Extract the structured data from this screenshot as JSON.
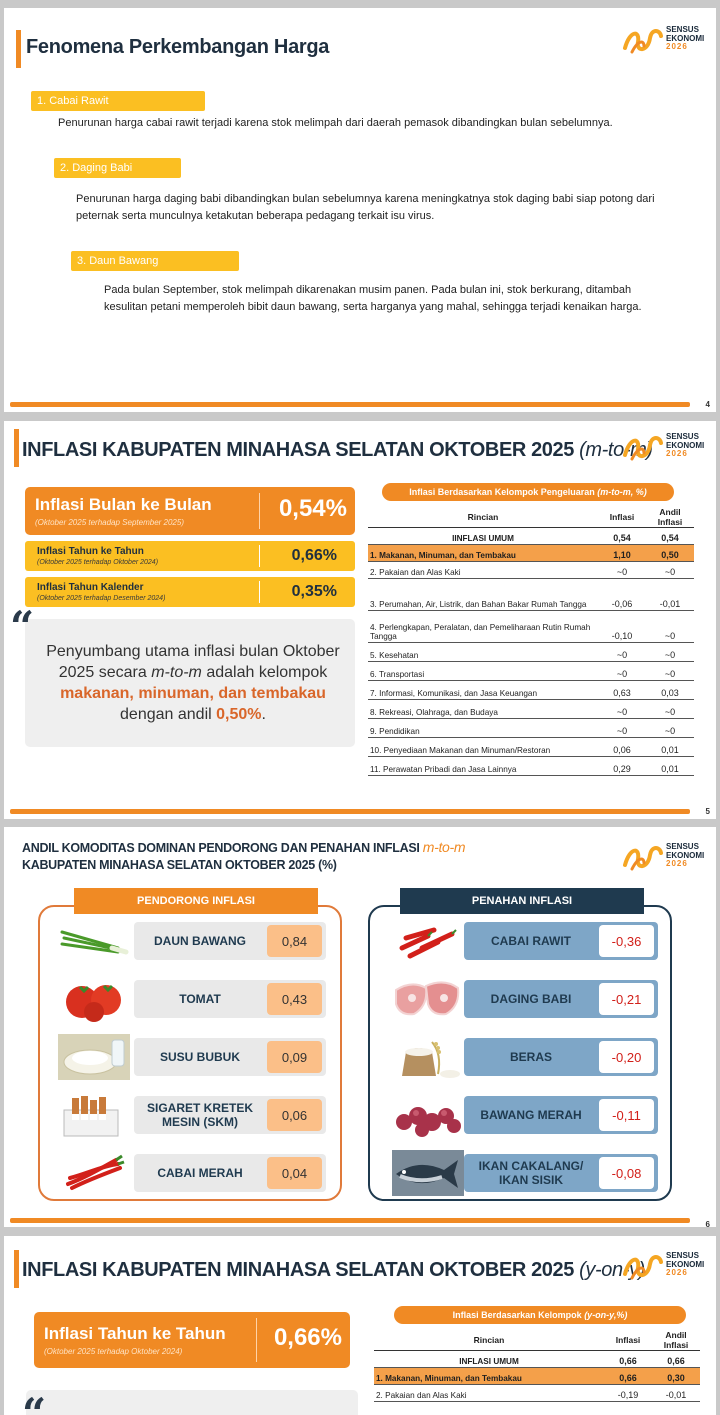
{
  "logo": {
    "line1": "SENSUS",
    "line2": "EKONOMI",
    "year": "2026"
  },
  "slide1": {
    "title": "Fenomena Perkembangan Harga",
    "items": [
      {
        "label": "1. Cabai Rawit",
        "text": "Penurunan harga cabai rawit terjadi karena stok melimpah dari daerah pemasok dibandingkan bulan sebelumnya."
      },
      {
        "label": "2. Daging Babi",
        "text": "Penurunan harga daging babi dibandingkan bulan sebelumnya karena meningkatnya stok daging babi siap potong dari peternak serta munculnya ketakutan beberapa pedagang terkait isu virus."
      },
      {
        "label": "3. Daun Bawang",
        "text": "Pada bulan September, stok melimpah dikarenakan musim panen. Pada bulan ini, stok berkurang, ditambah kesulitan petani memperoleh bibit daun bawang, serta harganya yang mahal, sehingga terjadi kenaikan harga."
      }
    ],
    "page": "4"
  },
  "slide2": {
    "title": "INFLASI KABUPATEN MINAHASA SELATAN OKTOBER 2025",
    "title_suffix": "(m-to-m)",
    "kpi_main": {
      "label": "Inflasi Bulan ke Bulan",
      "sub": "(Oktober 2025 terhadap September 2025)",
      "value": "0,54%"
    },
    "kpi_yoy": {
      "label": "Inflasi Tahun ke Tahun",
      "sub": "(Oktober 2025 terhadap Oktober 2024)",
      "value": "0,66%"
    },
    "kpi_ytd": {
      "label": "Inflasi Tahun Kalender",
      "sub": "(Oktober 2025 terhadap Desember 2024)",
      "value": "0,35%"
    },
    "quote": {
      "p1": "Penyumbang utama inflasi bulan Oktober 2025 secara ",
      "p2": "m-to-m",
      "p3": " adalah kelompok ",
      "p4": "makanan, minuman, dan tembakau",
      "p5": " dengan andil ",
      "p6": "0,50%",
      "p7": "."
    },
    "table_title": "Inflasi Berdasarkan Kelompok Pengeluaran",
    "table_title_suffix": "(m-to-m, %)",
    "headers": [
      "Rincian",
      "Inflasi",
      "Andil Inflasi"
    ],
    "umum": {
      "label": "IINFLASI UMUM",
      "inflasi": "0,54",
      "andil": "0,54"
    },
    "rows": [
      {
        "label": "1.  Makanan, Minuman, dan Tembakau",
        "inflasi": "1,10",
        "andil": "0,50"
      },
      {
        "label": "2.  Pakaian dan Alas Kaki",
        "inflasi": "~0",
        "andil": "~0"
      },
      {
        "label": "3.  Perumahan, Air, Listrik, dan Bahan Bakar Rumah Tangga",
        "inflasi": "-0,06",
        "andil": "-0,01"
      },
      {
        "label": "4.  Perlengkapan, Peralatan, dan Pemeliharaan Rutin Rumah Tangga",
        "inflasi": "-0,10",
        "andil": "~0"
      },
      {
        "label": "5.  Kesehatan",
        "inflasi": "~0",
        "andil": "~0"
      },
      {
        "label": "6.  Transportasi",
        "inflasi": "~0",
        "andil": "~0"
      },
      {
        "label": "7.  Informasi, Komunikasi, dan Jasa Keuangan",
        "inflasi": "0,63",
        "andil": "0,03"
      },
      {
        "label": "8.  Rekreasi, Olahraga, dan Budaya",
        "inflasi": "~0",
        "andil": "~0"
      },
      {
        "label": "9.  Pendidikan",
        "inflasi": "~0",
        "andil": "~0"
      },
      {
        "label": "10. Penyediaan Makanan dan Minuman/Restoran",
        "inflasi": "0,06",
        "andil": "0,01"
      },
      {
        "label": "11. Perawatan Pribadi dan Jasa Lainnya",
        "inflasi": "0,29",
        "andil": "0,01"
      }
    ],
    "page": "5"
  },
  "slide3": {
    "title1": "ANDIL KOMODITAS DOMINAN PENDORONG DAN PENAHAN INFLASI",
    "title1_suffix": "m-to-m",
    "title2": "KABUPATEN MINAHASA SELATAN OKTOBER 2025 (%)",
    "pendorong_title": "PENDORONG INFLASI",
    "penahan_title": "PENAHAN INFLASI",
    "pendorong": [
      {
        "name": "DAUN BAWANG",
        "value": "0,84",
        "icon": "spring-onion-icon"
      },
      {
        "name": "TOMAT",
        "value": "0,43",
        "icon": "tomato-icon"
      },
      {
        "name": "SUSU BUBUK",
        "value": "0,09",
        "icon": "milk-powder-icon"
      },
      {
        "name": "SIGARET KRETEK MESIN (SKM)",
        "value": "0,06",
        "icon": "cigarette-icon"
      },
      {
        "name": "CABAI MERAH",
        "value": "0,04",
        "icon": "red-chili-icon"
      }
    ],
    "penahan": [
      {
        "name": "CABAI RAWIT",
        "value": "-0,36",
        "icon": "bird-chili-icon"
      },
      {
        "name": "DAGING BABI",
        "value": "-0,21",
        "icon": "pork-icon"
      },
      {
        "name": "BERAS",
        "value": "-0,20",
        "icon": "rice-icon"
      },
      {
        "name": "BAWANG MERAH",
        "value": "-0,11",
        "icon": "shallot-icon"
      },
      {
        "name": "IKAN CAKALANG/ IKAN SISIK",
        "value": "-0,08",
        "icon": "fish-icon"
      }
    ],
    "page": "6"
  },
  "slide4": {
    "title": "INFLASI KABUPATEN MINAHASA SELATAN OKTOBER 2025",
    "title_suffix": "(y-on-y)",
    "kpi_main": {
      "label": "Inflasi Tahun ke Tahun",
      "sub": "(Oktober 2025 terhadap Oktober 2024)",
      "value": "0,66%"
    },
    "table_title": "Inflasi Berdasarkan Kelompok",
    "table_title_suffix": "(y-on-y,%)",
    "headers": [
      "Rincian",
      "Inflasi",
      "Andil Inflasi"
    ],
    "umum": {
      "label": "INFLASI UMUM",
      "inflasi": "0,66",
      "andil": "0,66"
    },
    "rows": [
      {
        "label": "1.  Makanan, Minuman, dan Tembakau",
        "inflasi": "0,66",
        "andil": "0,30"
      },
      {
        "label": "2.  Pakaian dan Alas Kaki",
        "inflasi": "-0,19",
        "andil": "-0,01"
      }
    ]
  },
  "colors": {
    "accent": "#f08a24",
    "yellow": "#fbbf22",
    "navy": "#1f3a4f",
    "steel": "#7ea6c7"
  }
}
